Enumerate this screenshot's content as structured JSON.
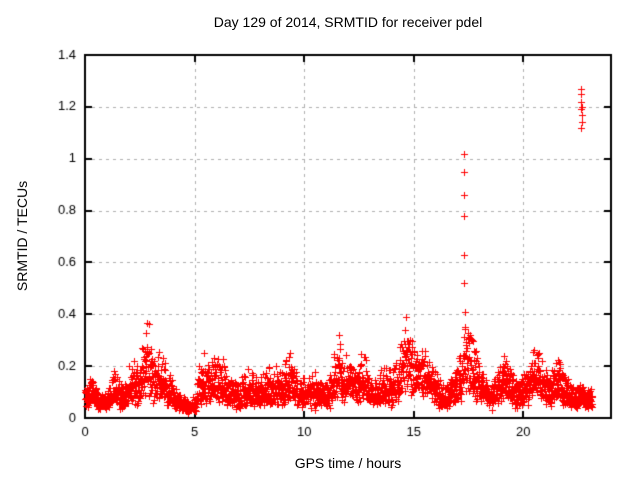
{
  "window": {
    "background": "#ffffff"
  },
  "chart_data": {
    "type": "scatter",
    "title": "Day 129 of 2014, SRMTID for receiver pdel",
    "xlabel": "GPS time / hours",
    "ylabel": "SRMTID / TECUs",
    "xlim": [
      0,
      24
    ],
    "ylim": [
      0,
      1.4
    ],
    "xticks": [
      {
        "v": 0,
        "label": "0"
      },
      {
        "v": 5,
        "label": "5"
      },
      {
        "v": 10,
        "label": "10"
      },
      {
        "v": 15,
        "label": "15"
      },
      {
        "v": 20,
        "label": "20"
      }
    ],
    "yticks": [
      {
        "v": 0,
        "label": "0"
      },
      {
        "v": 0.2,
        "label": "0.2"
      },
      {
        "v": 0.4,
        "label": "0.4"
      },
      {
        "v": 0.6,
        "label": "0.6"
      },
      {
        "v": 0.8,
        "label": "0.8"
      },
      {
        "v": 1,
        "label": "1"
      },
      {
        "v": 1.2,
        "label": "1.2"
      },
      {
        "v": 1.4,
        "label": "1.4"
      }
    ],
    "grid": true,
    "grid_color": "#b0b0b0",
    "border_color": "#000000",
    "text_color": "#000000",
    "marker": "plus",
    "marker_color": "#ff0000",
    "series": [
      {
        "name": "SRMTID",
        "sampling": {
          "x_start": 0,
          "x_end": 23.15,
          "n_points": 2600,
          "seed": 20140129
        },
        "envelope": {
          "hours": [
            0,
            0.25,
            0.6,
            1.0,
            1.35,
            1.7,
            2.15,
            2.45,
            2.8,
            3.1,
            3.5,
            3.8,
            4.2,
            4.7,
            5.0,
            5.3,
            5.6,
            5.9,
            6.15,
            6.5,
            7.0,
            7.4,
            7.8,
            8.2,
            8.6,
            9.0,
            9.35,
            9.7,
            10.1,
            10.5,
            11.0,
            11.3,
            11.6,
            11.85,
            12.1,
            12.4,
            12.65,
            13.0,
            13.3,
            13.6,
            14.0,
            14.35,
            14.7,
            15.0,
            15.25,
            15.6,
            16.0,
            16.4,
            16.8,
            17.1,
            17.3,
            17.55,
            17.8,
            18.1,
            18.5,
            18.9,
            19.15,
            19.5,
            19.9,
            20.2,
            20.45,
            20.65,
            20.9,
            21.2,
            21.5,
            21.8,
            22.1,
            22.4,
            22.7,
            23.0,
            23.15
          ],
          "median": [
            0.08,
            0.1,
            0.06,
            0.06,
            0.11,
            0.07,
            0.13,
            0.1,
            0.22,
            0.13,
            0.13,
            0.1,
            0.06,
            0.04,
            0.05,
            0.13,
            0.11,
            0.14,
            0.13,
            0.09,
            0.08,
            0.1,
            0.09,
            0.1,
            0.11,
            0.1,
            0.14,
            0.09,
            0.09,
            0.1,
            0.08,
            0.11,
            0.18,
            0.12,
            0.15,
            0.11,
            0.16,
            0.1,
            0.09,
            0.12,
            0.11,
            0.15,
            0.22,
            0.17,
            0.18,
            0.14,
            0.11,
            0.07,
            0.1,
            0.13,
            0.2,
            0.19,
            0.15,
            0.11,
            0.07,
            0.11,
            0.14,
            0.1,
            0.09,
            0.12,
            0.15,
            0.18,
            0.12,
            0.1,
            0.14,
            0.11,
            0.09,
            0.08,
            0.08,
            0.07,
            0.07
          ],
          "max": [
            0.14,
            0.16,
            0.1,
            0.1,
            0.19,
            0.12,
            0.27,
            0.18,
            0.49,
            0.3,
            0.25,
            0.18,
            0.1,
            0.07,
            0.09,
            0.38,
            0.22,
            0.31,
            0.28,
            0.16,
            0.14,
            0.2,
            0.16,
            0.18,
            0.22,
            0.18,
            0.27,
            0.15,
            0.17,
            0.18,
            0.13,
            0.2,
            0.4,
            0.22,
            0.33,
            0.19,
            0.36,
            0.17,
            0.15,
            0.22,
            0.18,
            0.28,
            0.41,
            0.3,
            0.37,
            0.24,
            0.18,
            0.12,
            0.17,
            0.24,
            0.36,
            0.33,
            0.28,
            0.18,
            0.12,
            0.19,
            0.25,
            0.17,
            0.15,
            0.2,
            0.28,
            0.44,
            0.22,
            0.17,
            0.25,
            0.19,
            0.15,
            0.12,
            0.13,
            0.12,
            0.11
          ]
        },
        "outlier_events": [
          {
            "x": 17.3,
            "x_jitter": 0.02,
            "values": [
              0.41,
              0.52,
              0.63,
              0.78,
              0.86,
              0.95,
              1.02
            ]
          },
          {
            "x": 22.65,
            "x_jitter": 0.05,
            "values": [
              1.12,
              1.14,
              1.17,
              1.19,
              1.2,
              1.22,
              1.25,
              1.25,
              1.27
            ]
          }
        ]
      }
    ]
  }
}
